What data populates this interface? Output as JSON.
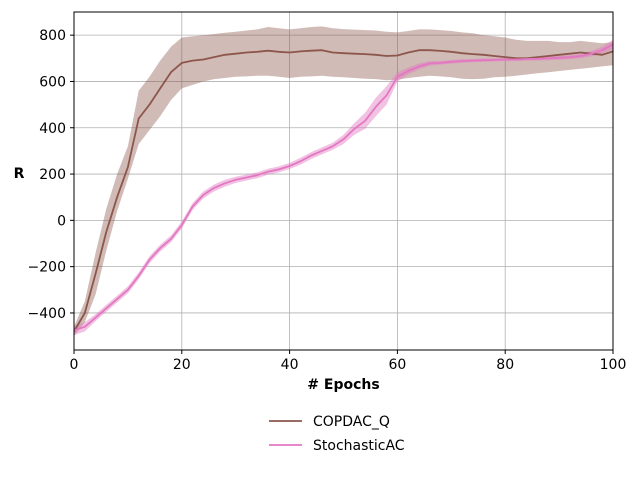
{
  "chart_data": {
    "type": "line",
    "title": "",
    "xlabel": "# Epochs",
    "ylabel": "R",
    "xlim": [
      0,
      100
    ],
    "ylim": [
      -560,
      900
    ],
    "xticks": [
      0,
      20,
      40,
      60,
      80,
      100
    ],
    "yticks": [
      -400,
      -200,
      0,
      200,
      400,
      600,
      800
    ],
    "xtick_labels": [
      "0",
      "20",
      "40",
      "60",
      "80",
      "100"
    ],
    "ytick_labels": [
      "−400",
      "−200",
      "0",
      "200",
      "400",
      "600",
      "800"
    ],
    "grid": true,
    "legend_position": "below",
    "series": [
      {
        "name": "COPDAC_Q",
        "color": "#8c564b",
        "x": [
          0,
          2,
          4,
          6,
          8,
          10,
          12,
          14,
          16,
          18,
          20,
          22,
          24,
          26,
          28,
          30,
          32,
          34,
          36,
          38,
          40,
          42,
          44,
          46,
          48,
          50,
          52,
          54,
          56,
          58,
          60,
          62,
          64,
          66,
          68,
          70,
          72,
          74,
          76,
          78,
          80,
          82,
          84,
          86,
          88,
          90,
          92,
          94,
          96,
          98,
          100
        ],
        "y": [
          -480,
          -400,
          -230,
          -50,
          100,
          230,
          440,
          500,
          570,
          640,
          680,
          690,
          695,
          705,
          715,
          720,
          725,
          728,
          733,
          728,
          725,
          730,
          733,
          735,
          725,
          722,
          720,
          718,
          715,
          710,
          712,
          725,
          735,
          735,
          732,
          728,
          722,
          718,
          715,
          710,
          705,
          700,
          700,
          705,
          710,
          715,
          720,
          725,
          720,
          715,
          730
        ],
        "lower": [
          -500,
          -440,
          -320,
          -130,
          40,
          180,
          330,
          390,
          450,
          520,
          570,
          585,
          600,
          610,
          615,
          620,
          622,
          625,
          625,
          620,
          615,
          620,
          622,
          625,
          620,
          618,
          615,
          612,
          610,
          605,
          608,
          615,
          620,
          625,
          622,
          618,
          612,
          610,
          612,
          618,
          620,
          625,
          630,
          635,
          640,
          645,
          650,
          655,
          660,
          665,
          670
        ],
        "upper": [
          -460,
          -350,
          -140,
          50,
          200,
          320,
          560,
          620,
          690,
          750,
          790,
          795,
          800,
          805,
          810,
          815,
          820,
          825,
          835,
          830,
          825,
          830,
          835,
          838,
          830,
          826,
          824,
          822,
          820,
          815,
          812,
          818,
          825,
          825,
          822,
          818,
          812,
          808,
          800,
          795,
          790,
          780,
          775,
          775,
          775,
          770,
          770,
          775,
          770,
          765,
          770
        ]
      },
      {
        "name": "StochasticAC",
        "color": "#e377c2",
        "x": [
          0,
          2,
          4,
          6,
          8,
          10,
          12,
          14,
          16,
          18,
          20,
          22,
          24,
          26,
          28,
          30,
          32,
          34,
          36,
          38,
          40,
          42,
          44,
          46,
          48,
          50,
          52,
          54,
          56,
          58,
          60,
          62,
          64,
          66,
          68,
          70,
          72,
          74,
          76,
          78,
          80,
          82,
          84,
          86,
          88,
          90,
          92,
          94,
          96,
          98,
          100
        ],
        "y": [
          -475,
          -460,
          -420,
          -380,
          -340,
          -300,
          -240,
          -170,
          -120,
          -80,
          -20,
          60,
          110,
          140,
          160,
          175,
          185,
          195,
          210,
          220,
          235,
          255,
          280,
          300,
          320,
          350,
          395,
          430,
          490,
          540,
          620,
          645,
          665,
          678,
          680,
          685,
          688,
          690,
          692,
          693,
          695,
          695,
          697,
          698,
          700,
          702,
          705,
          710,
          720,
          735,
          760
        ],
        "lower": [
          -495,
          -480,
          -435,
          -395,
          -355,
          -315,
          -255,
          -185,
          -135,
          -95,
          -35,
          45,
          95,
          125,
          145,
          162,
          172,
          182,
          197,
          207,
          222,
          240,
          265,
          285,
          305,
          330,
          370,
          395,
          450,
          500,
          600,
          630,
          652,
          668,
          672,
          677,
          680,
          683,
          685,
          686,
          688,
          688,
          690,
          690,
          692,
          694,
          696,
          700,
          708,
          720,
          740
        ],
        "upper": [
          -455,
          -440,
          -405,
          -365,
          -325,
          -285,
          -225,
          -155,
          -105,
          -65,
          -5,
          75,
          125,
          155,
          175,
          188,
          198,
          208,
          223,
          233,
          248,
          270,
          295,
          315,
          335,
          370,
          420,
          465,
          530,
          580,
          640,
          660,
          678,
          688,
          688,
          693,
          696,
          697,
          699,
          700,
          702,
          702,
          704,
          706,
          708,
          710,
          714,
          720,
          732,
          750,
          780
        ]
      }
    ]
  }
}
